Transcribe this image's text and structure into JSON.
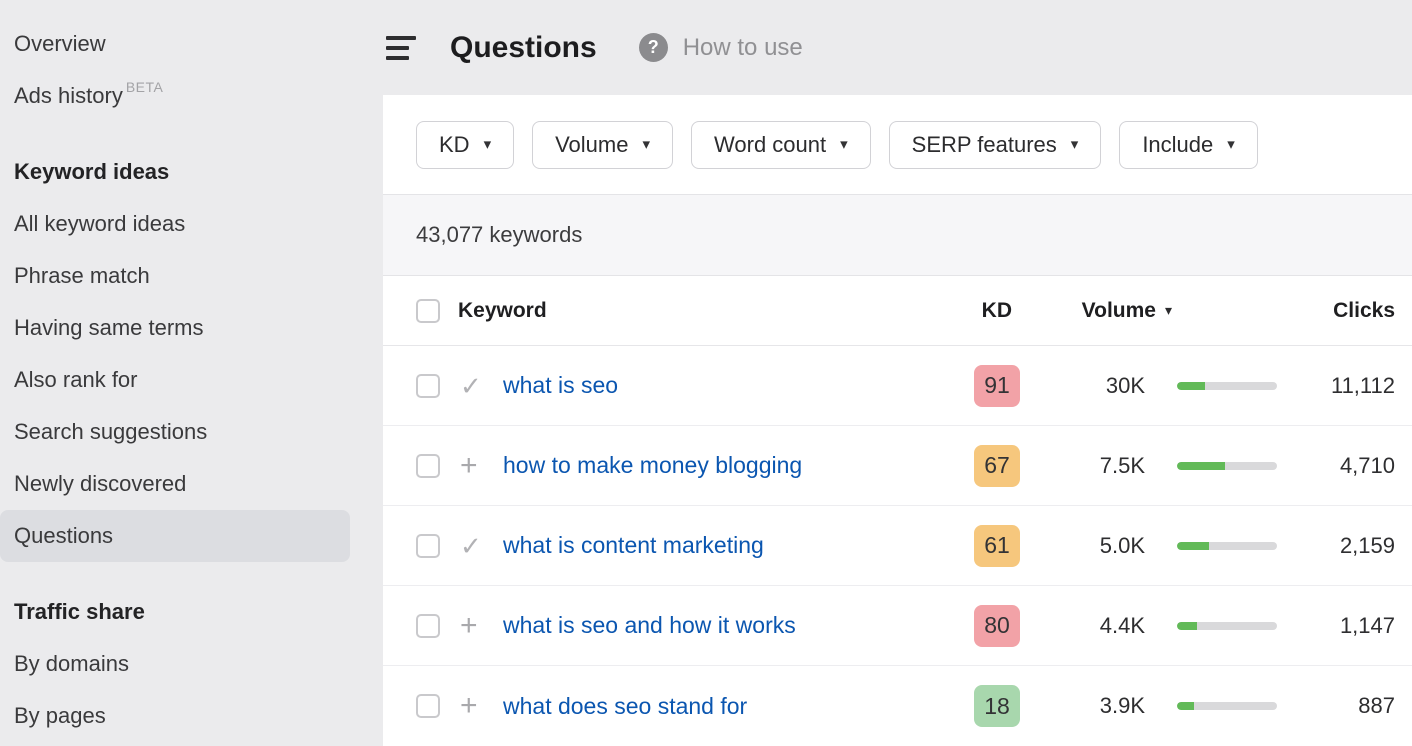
{
  "sidebar": {
    "items": [
      {
        "label": "Overview",
        "type": "item"
      },
      {
        "label": "Ads history",
        "type": "item",
        "badge": "BETA"
      },
      {
        "label": "Keyword ideas",
        "type": "header"
      },
      {
        "label": "All keyword ideas",
        "type": "item"
      },
      {
        "label": "Phrase match",
        "type": "item"
      },
      {
        "label": "Having same terms",
        "type": "item"
      },
      {
        "label": "Also rank for",
        "type": "item"
      },
      {
        "label": "Search suggestions",
        "type": "item"
      },
      {
        "label": "Newly discovered",
        "type": "item"
      },
      {
        "label": "Questions",
        "type": "item",
        "selected": true
      },
      {
        "label": "Traffic share",
        "type": "header"
      },
      {
        "label": "By domains",
        "type": "item"
      },
      {
        "label": "By pages",
        "type": "item"
      }
    ]
  },
  "header": {
    "title": "Questions",
    "help_icon": "?",
    "help_label": "How to use"
  },
  "filters": {
    "buttons": [
      "KD",
      "Volume",
      "Word count",
      "SERP features",
      "Include"
    ]
  },
  "results": {
    "count_label": "43,077 keywords"
  },
  "table": {
    "columns": {
      "keyword": "Keyword",
      "kd": "KD",
      "volume": "Volume",
      "clicks": "Clicks"
    },
    "sorted_by": "Volume",
    "rows": [
      {
        "icon": "check",
        "keyword": "what is seo",
        "kd": "91",
        "kd_level": "red",
        "volume": "30K",
        "bar_pct": 28,
        "clicks": "11,112"
      },
      {
        "icon": "plus",
        "keyword": "how to make money blogging",
        "kd": "67",
        "kd_level": "orange",
        "volume": "7.5K",
        "bar_pct": 48,
        "clicks": "4,710"
      },
      {
        "icon": "check",
        "keyword": "what is content marketing",
        "kd": "61",
        "kd_level": "orange",
        "volume": "5.0K",
        "bar_pct": 32,
        "clicks": "2,159"
      },
      {
        "icon": "plus",
        "keyword": "what is seo and how it works",
        "kd": "80",
        "kd_level": "red",
        "volume": "4.4K",
        "bar_pct": 20,
        "clicks": "1,147"
      },
      {
        "icon": "plus",
        "keyword": "what does seo stand for",
        "kd": "18",
        "kd_level": "green",
        "volume": "3.9K",
        "bar_pct": 17,
        "clicks": "887"
      }
    ]
  },
  "icons": {
    "check": "✓",
    "plus": "+",
    "caret_down": "▾"
  },
  "colors": {
    "link": "#0b56b0",
    "bar_fill": "#62ba58",
    "bar_track": "#d9d9db",
    "sidebar_bg": "#ebebed",
    "selected_bg": "#dcdde1",
    "band_bg": "#f6f6f8",
    "kd": {
      "red": "#f2a2a7",
      "orange": "#f6c77d",
      "green": "#a8d7ad"
    }
  }
}
